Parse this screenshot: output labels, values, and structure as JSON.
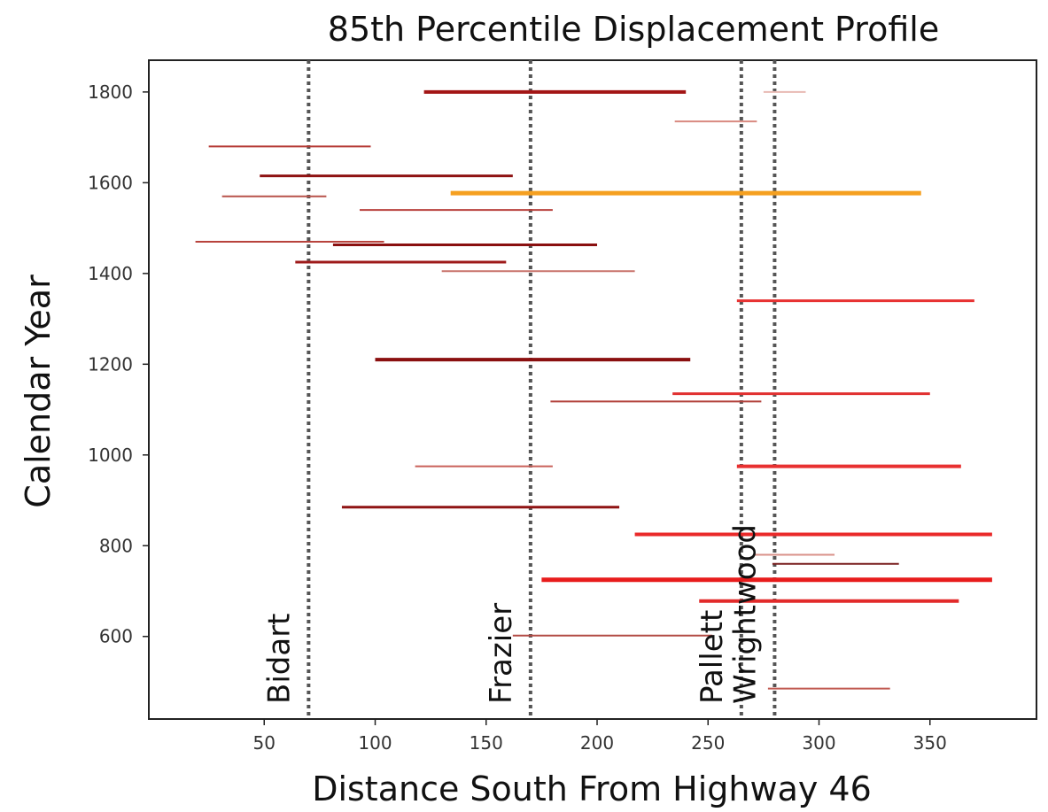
{
  "chart_data": {
    "type": "bar",
    "title": "85th Percentile Displacement Profile",
    "xlabel": "Distance South From Highway 46",
    "ylabel": "Calendar Year",
    "xlim": [
      -2,
      398
    ],
    "ylim": [
      418,
      1870
    ],
    "xticks": [
      50,
      100,
      150,
      200,
      250,
      300,
      350
    ],
    "yticks": [
      600,
      800,
      1000,
      1200,
      1400,
      1600,
      1800
    ],
    "grid": false,
    "reference_lines": [
      {
        "label": "Bidart",
        "x": 70
      },
      {
        "label": "Frazier",
        "x": 170
      },
      {
        "label": "Pallett",
        "x": 265
      },
      {
        "label": "Wrightwood",
        "x": 280
      }
    ],
    "segments": [
      {
        "year": 1800,
        "x_start": 122,
        "x_end": 240,
        "color": "#a31515",
        "weight": 4
      },
      {
        "year": 1800,
        "x_start": 275,
        "x_end": 294,
        "color": "#e8b9b3",
        "weight": 2
      },
      {
        "year": 1735,
        "x_start": 235,
        "x_end": 272,
        "color": "#d98a80",
        "weight": 2
      },
      {
        "year": 1680,
        "x_start": 25,
        "x_end": 98,
        "color": "#b53a35",
        "weight": 2
      },
      {
        "year": 1615,
        "x_start": 48,
        "x_end": 162,
        "color": "#8e1212",
        "weight": 3
      },
      {
        "year": 1577,
        "x_start": 134,
        "x_end": 346,
        "color": "#f5a020",
        "weight": 5
      },
      {
        "year": 1570,
        "x_start": 31,
        "x_end": 78,
        "color": "#b8524b",
        "weight": 2
      },
      {
        "year": 1540,
        "x_start": 93,
        "x_end": 180,
        "color": "#b8413b",
        "weight": 2
      },
      {
        "year": 1470,
        "x_start": 19,
        "x_end": 104,
        "color": "#b8433c",
        "weight": 2
      },
      {
        "year": 1463,
        "x_start": 81,
        "x_end": 200,
        "color": "#8a1010",
        "weight": 3
      },
      {
        "year": 1425,
        "x_start": 64,
        "x_end": 159,
        "color": "#9e1a1a",
        "weight": 3
      },
      {
        "year": 1405,
        "x_start": 130,
        "x_end": 217,
        "color": "#c9746c",
        "weight": 2
      },
      {
        "year": 1340,
        "x_start": 263,
        "x_end": 370,
        "color": "#e83232",
        "weight": 3
      },
      {
        "year": 1210,
        "x_start": 100,
        "x_end": 242,
        "color": "#8a0f0f",
        "weight": 4
      },
      {
        "year": 1135,
        "x_start": 234,
        "x_end": 350,
        "color": "#e13030",
        "weight": 3
      },
      {
        "year": 1118,
        "x_start": 179,
        "x_end": 274,
        "color": "#b3423c",
        "weight": 2
      },
      {
        "year": 975,
        "x_start": 263,
        "x_end": 364,
        "color": "#e83030",
        "weight": 4
      },
      {
        "year": 975,
        "x_start": 118,
        "x_end": 180,
        "color": "#c9615a",
        "weight": 2
      },
      {
        "year": 885,
        "x_start": 85,
        "x_end": 210,
        "color": "#8f1313",
        "weight": 3
      },
      {
        "year": 825,
        "x_start": 217,
        "x_end": 378,
        "color": "#ea2a2a",
        "weight": 4
      },
      {
        "year": 780,
        "x_start": 271,
        "x_end": 307,
        "color": "#d9928a",
        "weight": 2
      },
      {
        "year": 760,
        "x_start": 279,
        "x_end": 336,
        "color": "#7a2020",
        "weight": 2
      },
      {
        "year": 725,
        "x_start": 175,
        "x_end": 378,
        "color": "#e81c1c",
        "weight": 5
      },
      {
        "year": 678,
        "x_start": 246,
        "x_end": 363,
        "color": "#e22a2a",
        "weight": 4
      },
      {
        "year": 602,
        "x_start": 162,
        "x_end": 252,
        "color": "#b24a44",
        "weight": 2
      },
      {
        "year": 485,
        "x_start": 277,
        "x_end": 332,
        "color": "#c05a52",
        "weight": 2
      }
    ]
  }
}
